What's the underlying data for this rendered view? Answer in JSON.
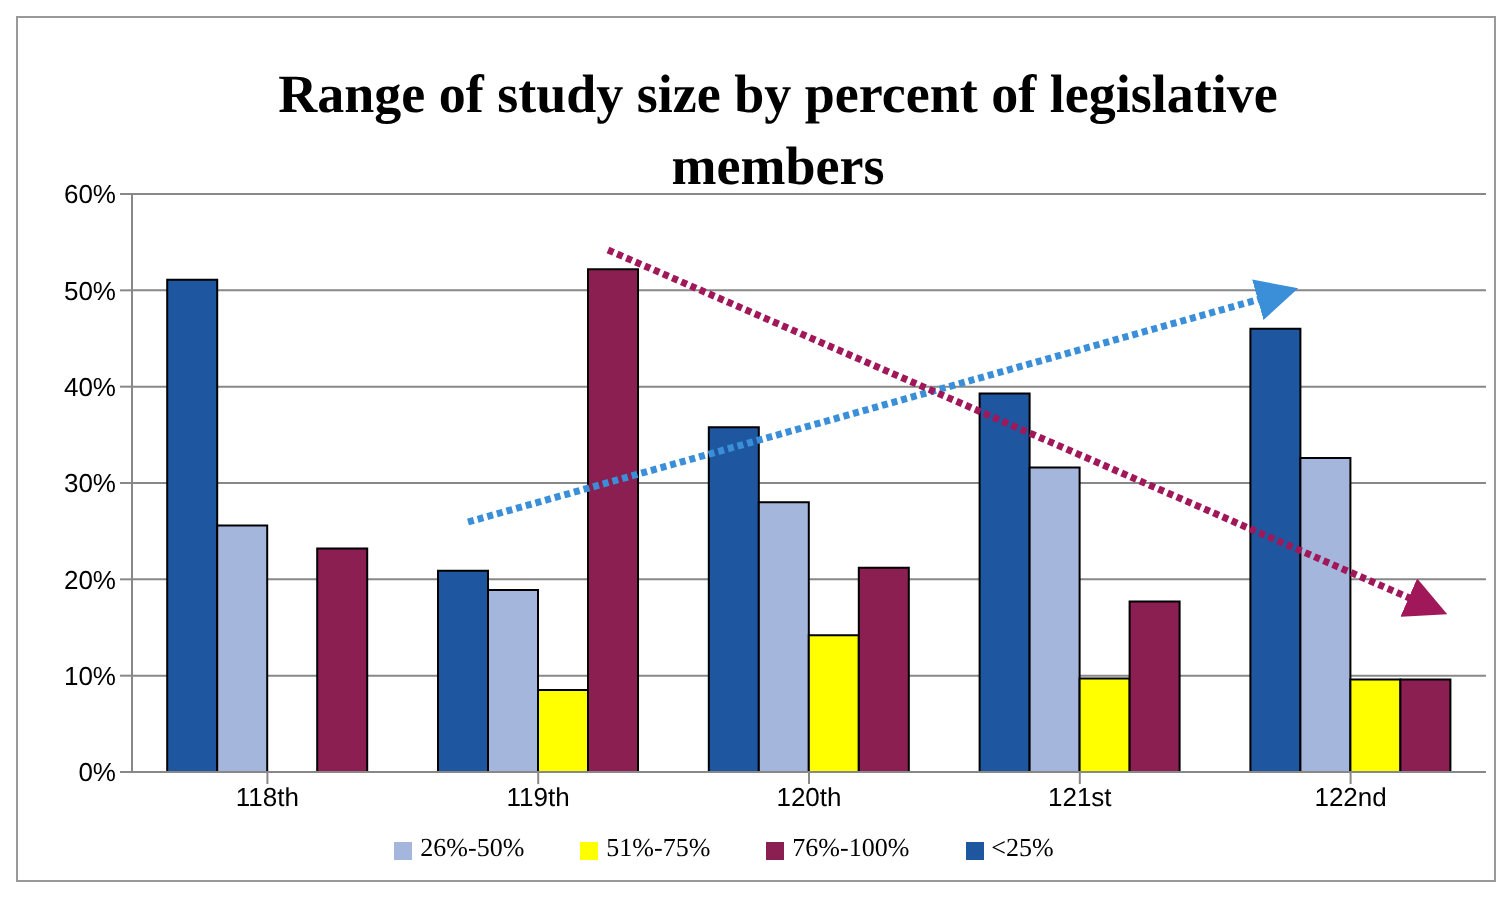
{
  "chart_data": {
    "type": "bar",
    "title": "Range of study size by percent of legislative members",
    "categories": [
      "118th",
      "119th",
      "120th",
      "121st",
      "122nd"
    ],
    "series": [
      {
        "name": "<25%",
        "color": "#1f56a0",
        "values": [
          51.1,
          20.9,
          35.8,
          39.3,
          46.0
        ]
      },
      {
        "name": "26%-50%",
        "color": "#a4b6dc",
        "values": [
          25.6,
          18.9,
          28.0,
          31.6,
          32.6
        ]
      },
      {
        "name": "51%-75%",
        "color": "#ffff00",
        "values": [
          0,
          8.5,
          14.2,
          9.7,
          9.6
        ]
      },
      {
        "name": "76%-100%",
        "color": "#8b1f52",
        "values": [
          23.2,
          52.2,
          21.2,
          17.7,
          9.6
        ]
      }
    ],
    "ylim": [
      0,
      60
    ],
    "yticks": [
      {
        "value": 0,
        "label": "0%"
      },
      {
        "value": 10,
        "label": "10%"
      },
      {
        "value": 20,
        "label": "20%"
      },
      {
        "value": 30,
        "label": "30%"
      },
      {
        "value": 40,
        "label": "40%"
      },
      {
        "value": 50,
        "label": "50%"
      },
      {
        "value": 60,
        "label": "60%"
      }
    ],
    "grid": "y",
    "legend": "bottom"
  }
}
